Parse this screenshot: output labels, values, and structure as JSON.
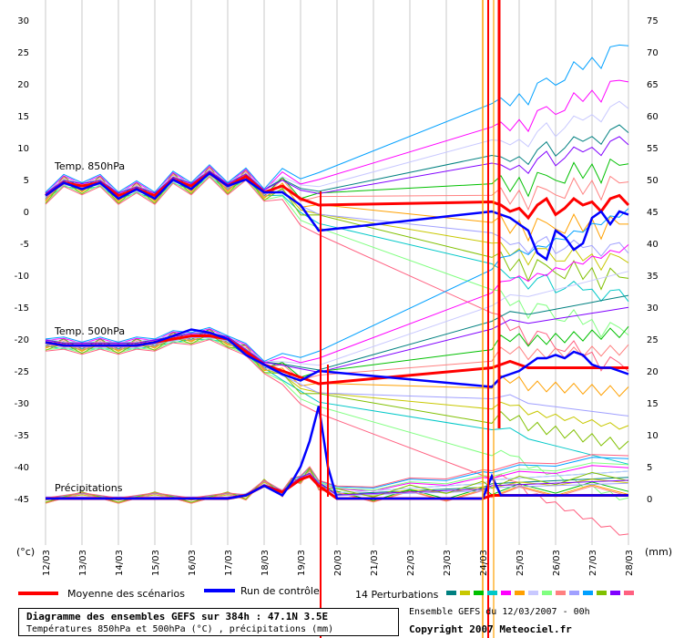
{
  "chart_data": {
    "type": "line",
    "title": "Diagramme des ensembles GEFS sur 384h : 47.1N 3.5E",
    "subtitle": "Températures 850hPa et 500hPa (°C) , précipitations (mm)",
    "source": "Ensemble GEFS du 12/03/2007 - 00h",
    "copyright": "Copyright 2007 Meteociel.fr",
    "left_unit": "(°c)",
    "right_unit": "(mm)",
    "left_axis": {
      "min": -45,
      "max": 30,
      "ticks": [
        30,
        25,
        20,
        15,
        10,
        5,
        0,
        -5,
        -10,
        -15,
        -20,
        -25,
        -30,
        -35,
        -40,
        -45
      ]
    },
    "right_axis": {
      "min": 0,
      "max": 75,
      "ticks": [
        75,
        70,
        65,
        60,
        55,
        50,
        45,
        40,
        35,
        30,
        25,
        20,
        15,
        10,
        5,
        0
      ]
    },
    "x_labels": [
      "12/03",
      "13/03",
      "14/03",
      "15/03",
      "16/03",
      "17/03",
      "18/03",
      "19/03",
      "20/03",
      "21/03",
      "22/03",
      "23/03",
      "24/03",
      "25/03",
      "26/03",
      "27/03",
      "28/03"
    ],
    "section_labels": {
      "t850": "Temp. 850hPa",
      "t500": "Temp. 500hPa",
      "precip": "Précipitations"
    },
    "legend": {
      "mean": "Moyenne des scénarios",
      "control": "Run de contrôle",
      "perturbations": "14 Perturbations"
    },
    "colors": {
      "mean": "#ff0000",
      "control": "#0000ff",
      "perturbations": [
        "#008080",
        "#c8c800",
        "#00c000",
        "#00c8c8",
        "#ff00ff",
        "#ffa000",
        "#c8c8ff",
        "#80ff80",
        "#ff8080",
        "#a0a0ff",
        "#00a0ff",
        "#80c000",
        "#8000ff",
        "#ff6080"
      ]
    },
    "series": [
      {
        "name": "Moyenne des scénarios",
        "group": "t850",
        "x": [
          0,
          0.5,
          1,
          1.5,
          2,
          2.5,
          3,
          3.5,
          4,
          4.5,
          5,
          5.5,
          6,
          6.5,
          7,
          7.5,
          12.25,
          12.5,
          12.75,
          13,
          13.25,
          13.5,
          13.75,
          14,
          14.25,
          14.5,
          14.75,
          15,
          15.25,
          15.5,
          15.75,
          16
        ],
        "y": [
          2.5,
          4.5,
          4,
          4.5,
          2.5,
          3.5,
          2.5,
          5,
          4,
          6,
          4,
          5.5,
          3,
          4,
          2,
          1,
          1.5,
          1,
          0,
          0.5,
          -1,
          1,
          2,
          -0.5,
          0.5,
          2,
          1,
          1.5,
          0,
          2,
          2.5,
          1
        ]
      },
      {
        "name": "Moyenne des scénarios",
        "group": "t500",
        "x": [
          0,
          0.5,
          1,
          1.5,
          2,
          2.5,
          3,
          3.5,
          4,
          4.5,
          5,
          5.5,
          6,
          6.5,
          7,
          7.5,
          12.25,
          12.5,
          12.75,
          13,
          13.25,
          13.5,
          13.75,
          14,
          14.25,
          14.5,
          14.75,
          15,
          15.25,
          15.5,
          15.75,
          16
        ],
        "y": [
          -20.5,
          -21,
          -21,
          -21,
          -21,
          -21,
          -20.5,
          -20,
          -19.5,
          -19.5,
          -20,
          -22,
          -24,
          -25,
          -26,
          -27,
          -24.5,
          -24,
          -23.5,
          -24,
          -24.5,
          -24.5,
          -24.5,
          -24.5,
          -24.5,
          -24.5,
          -24.5,
          -24.5,
          -24.5,
          -24.5,
          -24.5,
          -24.5
        ]
      },
      {
        "name": "Moyenne des scénarios",
        "group": "precip",
        "x": [
          0,
          1,
          2,
          3,
          4,
          5,
          5.5,
          6,
          6.5,
          6.75,
          7,
          7.25,
          7.5,
          8,
          9,
          10,
          11,
          12,
          12.25,
          13,
          14,
          15,
          16
        ],
        "y": [
          -45,
          -45,
          -45,
          -45,
          -45,
          -45,
          -44.5,
          -43,
          -44,
          -43,
          -42,
          -41.5,
          -43,
          -45,
          -45,
          -45,
          -45,
          -45,
          -44.5,
          -44.5,
          -44.5,
          -44.5,
          -44.5
        ]
      },
      {
        "name": "Run de contrôle",
        "group": "t850",
        "x": [
          0,
          0.5,
          1,
          1.5,
          2,
          2.5,
          3,
          3.5,
          4,
          4.5,
          5,
          5.5,
          6,
          6.5,
          7,
          7.5,
          12.25,
          12.5,
          12.75,
          13,
          13.25,
          13.5,
          13.75,
          14,
          14.25,
          14.5,
          14.75,
          15,
          15.25,
          15.5,
          15.75,
          16
        ],
        "y": [
          2.5,
          4.5,
          3.5,
          4.5,
          2,
          3.5,
          2,
          5,
          3.5,
          6,
          4,
          5,
          3,
          3,
          1,
          -3,
          0,
          -0.5,
          -1,
          -2,
          -3,
          -6.5,
          -7.5,
          -3,
          -4,
          -6,
          -5,
          -1,
          0,
          -2,
          0,
          -0.5
        ]
      },
      {
        "name": "Run de contrôle",
        "group": "t500",
        "x": [
          0,
          0.5,
          1,
          1.5,
          2,
          2.5,
          3,
          3.5,
          4,
          4.5,
          5,
          5.5,
          6,
          6.5,
          7,
          7.5,
          12.25,
          12.5,
          12.75,
          13,
          13.25,
          13.5,
          13.75,
          14,
          14.25,
          14.5,
          14.75,
          15,
          15.25,
          15.5,
          15.75,
          16
        ],
        "y": [
          -20.5,
          -21,
          -21,
          -21,
          -21,
          -21,
          -20.5,
          -19.5,
          -18.5,
          -19,
          -20,
          -22.5,
          -24,
          -25.5,
          -26.5,
          -25,
          -27.5,
          -26,
          -25.5,
          -25,
          -24,
          -23,
          -23,
          -22.5,
          -23,
          -22,
          -22.5,
          -24,
          -24.5,
          -24.5,
          -25,
          -25.5
        ]
      },
      {
        "name": "Run de contrôle",
        "group": "precip",
        "x": [
          0,
          1,
          2,
          3,
          4,
          5,
          5.5,
          6,
          6.5,
          6.75,
          7,
          7.25,
          7.5,
          7.75,
          8,
          9,
          12,
          12.25,
          12.5,
          13,
          14,
          15,
          16
        ],
        "y": [
          -45,
          -45,
          -45,
          -45,
          -45,
          -45,
          -44.5,
          -43,
          -44.5,
          -42.5,
          -40,
          -36,
          -30.5,
          -40,
          -45,
          -45,
          -45,
          -41.5,
          -44.5,
          -44.5,
          -44.5,
          -44.5,
          -44.5
        ]
      }
    ]
  }
}
